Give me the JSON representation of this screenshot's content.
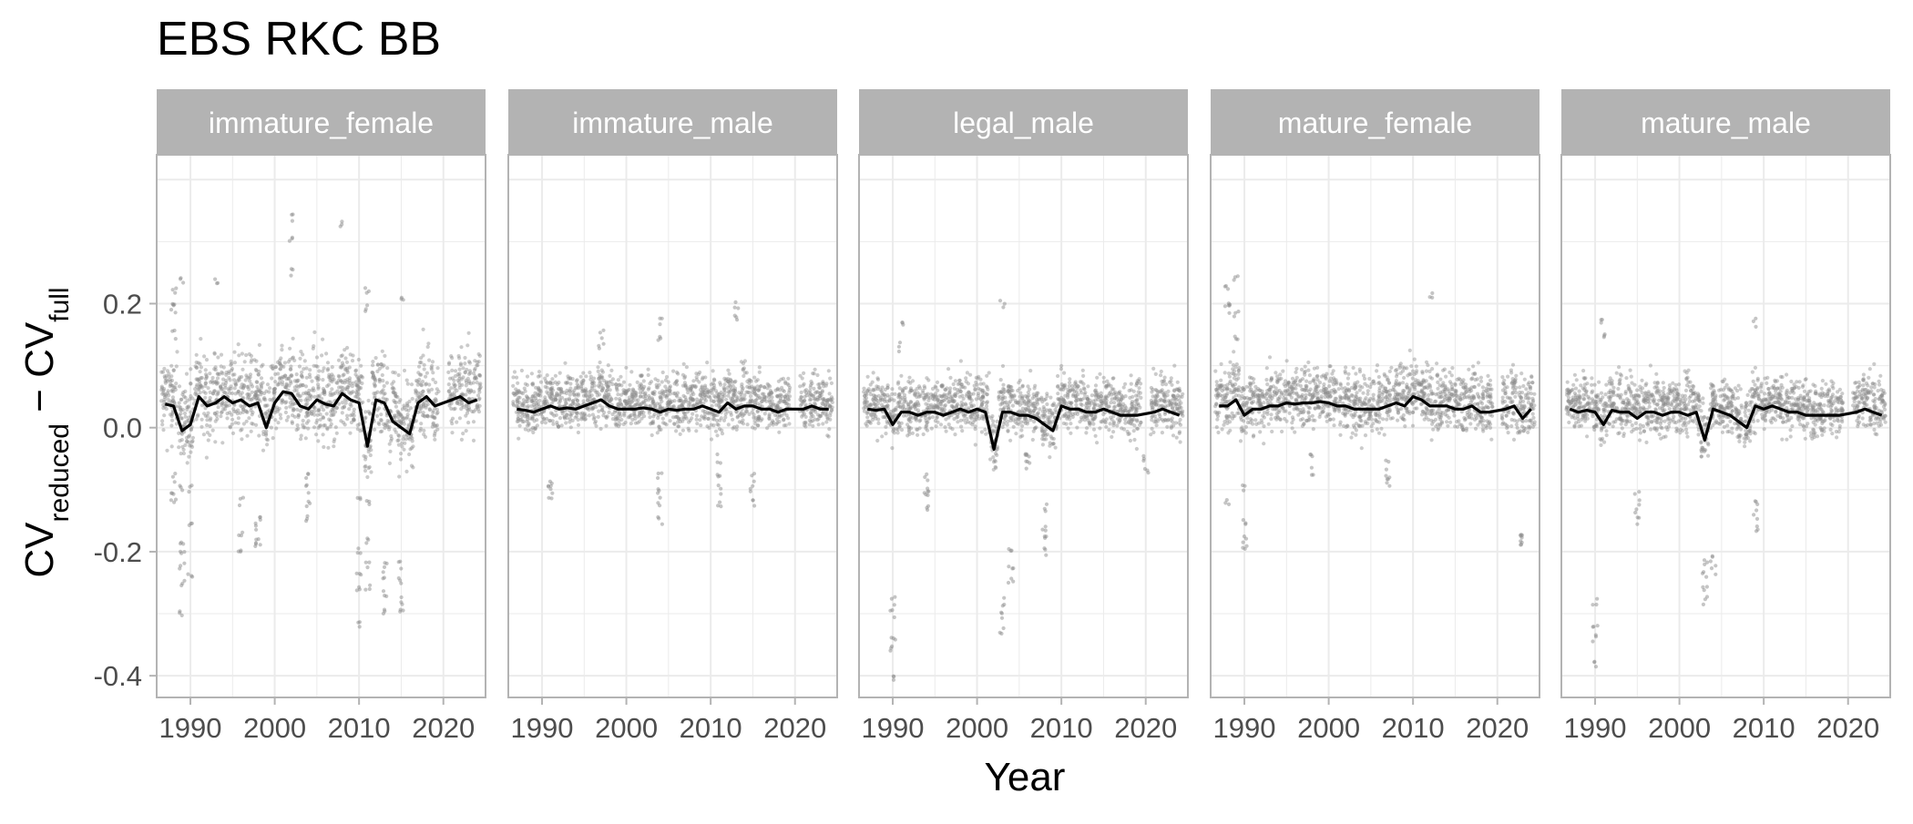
{
  "chart_data": {
    "type": "scatter",
    "title": "EBS RKC BB",
    "xlabel": "Year",
    "ylabel": {
      "base": "CV",
      "sub1": "reduced",
      "minus": " − ",
      "sub2": "full"
    },
    "xlim": [
      1986,
      2025
    ],
    "ylim": [
      -0.435,
      0.44
    ],
    "x_ticks": [
      1990,
      2000,
      2010,
      2020
    ],
    "x_tick_labels": [
      "1990",
      "2000",
      "2010",
      "2020"
    ],
    "y_ticks": [
      0.2,
      0.0,
      -0.2,
      -0.4
    ],
    "y_tick_labels": [
      "0.2",
      "0.0",
      "-0.2",
      "-0.4"
    ],
    "grid": true,
    "legend": "none",
    "colors": {
      "points": "#8c8c8c",
      "line": "#000000",
      "strip": "#b3b3b3",
      "strip_text": "#ffffff",
      "panel_border": "#b3b3b3",
      "grid": "#ebebeb",
      "axis_text": "#4d4d4d"
    },
    "years": [
      1987,
      1988,
      1989,
      1990,
      1991,
      1992,
      1993,
      1994,
      1995,
      1996,
      1997,
      1998,
      1999,
      2000,
      2001,
      2002,
      2003,
      2004,
      2005,
      2006,
      2007,
      2008,
      2009,
      2010,
      2011,
      2012,
      2013,
      2014,
      2015,
      2016,
      2017,
      2018,
      2019,
      2021,
      2022,
      2023,
      2024
    ],
    "panels": [
      {
        "label": "immature_female",
        "mean_line": [
          0.038,
          0.035,
          -0.005,
          0.005,
          0.05,
          0.035,
          0.04,
          0.05,
          0.04,
          0.045,
          0.035,
          0.04,
          0.0,
          0.04,
          0.058,
          0.055,
          0.035,
          0.03,
          0.045,
          0.038,
          0.035,
          0.055,
          0.045,
          0.04,
          -0.03,
          0.045,
          0.04,
          0.01,
          0.0,
          -0.01,
          0.04,
          0.05,
          0.035,
          0.045,
          0.05,
          0.04,
          0.045
        ],
        "spread": 0.06,
        "outliers": [
          {
            "year": 1988,
            "values": [
              0.22,
              0.2,
              0.19,
              0.15,
              -0.08,
              -0.1,
              -0.12
            ]
          },
          {
            "year": 1989,
            "values": [
              0.24,
              -0.2,
              -0.22,
              -0.25,
              -0.3,
              -0.18,
              -0.1
            ]
          },
          {
            "year": 1990,
            "values": [
              -0.1,
              -0.15,
              -0.24
            ]
          },
          {
            "year": 1993,
            "values": [
              0.24
            ]
          },
          {
            "year": 1996,
            "values": [
              -0.12,
              -0.17,
              -0.2
            ]
          },
          {
            "year": 1998,
            "values": [
              -0.15,
              -0.18,
              -0.16,
              -0.19
            ]
          },
          {
            "year": 2002,
            "values": [
              0.34,
              0.3,
              0.25
            ]
          },
          {
            "year": 2004,
            "values": [
              -0.08,
              -0.1,
              -0.12,
              -0.15
            ]
          },
          {
            "year": 2008,
            "values": [
              0.33
            ]
          },
          {
            "year": 2010,
            "values": [
              -0.2,
              -0.24,
              -0.26,
              -0.32,
              -0.12
            ]
          },
          {
            "year": 2011,
            "values": [
              -0.22,
              -0.18,
              -0.12,
              -0.26,
              0.22,
              0.19
            ]
          },
          {
            "year": 2013,
            "values": [
              -0.22,
              -0.27,
              -0.3,
              -0.24
            ]
          },
          {
            "year": 2015,
            "values": [
              -0.25,
              -0.28,
              -0.3,
              -0.22,
              0.21
            ]
          }
        ]
      },
      {
        "label": "immature_male",
        "mean_line": [
          0.03,
          0.028,
          0.025,
          0.03,
          0.035,
          0.03,
          0.032,
          0.03,
          0.035,
          0.04,
          0.045,
          0.035,
          0.03,
          0.03,
          0.03,
          0.032,
          0.03,
          0.025,
          0.03,
          0.028,
          0.03,
          0.03,
          0.035,
          0.03,
          0.025,
          0.04,
          0.03,
          0.035,
          0.035,
          0.03,
          0.03,
          0.025,
          0.03,
          0.03,
          0.035,
          0.03,
          0.03
        ],
        "spread": 0.04,
        "outliers": [
          {
            "year": 1991,
            "values": [
              -0.09,
              -0.1,
              -0.11
            ]
          },
          {
            "year": 1997,
            "values": [
              0.15,
              0.13
            ]
          },
          {
            "year": 2004,
            "values": [
              -0.08,
              -0.1,
              -0.12,
              -0.15,
              0.17,
              0.14
            ]
          },
          {
            "year": 2011,
            "values": [
              -0.05,
              -0.08,
              -0.1,
              -0.12
            ]
          },
          {
            "year": 2013,
            "values": [
              0.2,
              0.18
            ]
          },
          {
            "year": 2015,
            "values": [
              -0.1,
              -0.12,
              -0.08
            ]
          }
        ]
      },
      {
        "label": "legal_male",
        "mean_line": [
          0.03,
          0.028,
          0.03,
          0.005,
          0.025,
          0.025,
          0.02,
          0.025,
          0.025,
          0.02,
          0.025,
          0.03,
          0.025,
          0.03,
          0.025,
          -0.035,
          0.025,
          0.025,
          0.02,
          0.02,
          0.015,
          0.005,
          -0.005,
          0.035,
          0.03,
          0.03,
          0.025,
          0.025,
          0.03,
          0.025,
          0.02,
          0.02,
          0.02,
          0.025,
          0.03,
          0.025,
          0.02
        ],
        "spread": 0.04,
        "outliers": [
          {
            "year": 1990,
            "values": [
              -0.3,
              -0.34,
              -0.36,
              -0.4,
              -0.28
            ]
          },
          {
            "year": 1991,
            "values": [
              0.17,
              0.13
            ]
          },
          {
            "year": 1994,
            "values": [
              -0.08,
              -0.1,
              -0.11,
              -0.13
            ]
          },
          {
            "year": 2003,
            "values": [
              -0.28,
              -0.3,
              -0.33,
              0.2
            ]
          },
          {
            "year": 2004,
            "values": [
              -0.2,
              -0.22,
              -0.25
            ]
          },
          {
            "year": 2006,
            "values": [
              -0.04,
              -0.05,
              -0.06
            ]
          },
          {
            "year": 2008,
            "values": [
              -0.13,
              -0.16,
              -0.18,
              -0.2
            ]
          },
          {
            "year": 2020,
            "values": [
              -0.05,
              -0.07
            ]
          }
        ]
      },
      {
        "label": "mature_female",
        "mean_line": [
          0.035,
          0.035,
          0.045,
          0.02,
          0.03,
          0.03,
          0.035,
          0.035,
          0.04,
          0.038,
          0.04,
          0.04,
          0.042,
          0.04,
          0.035,
          0.035,
          0.03,
          0.03,
          0.03,
          0.03,
          0.035,
          0.04,
          0.035,
          0.05,
          0.045,
          0.035,
          0.035,
          0.035,
          0.03,
          0.03,
          0.035,
          0.025,
          0.025,
          0.03,
          0.035,
          0.015,
          0.03
        ],
        "spread": 0.045,
        "outliers": [
          {
            "year": 1988,
            "values": [
              0.23,
              0.2,
              0.19,
              -0.12
            ]
          },
          {
            "year": 1989,
            "values": [
              0.18,
              0.15,
              0.24
            ]
          },
          {
            "year": 1990,
            "values": [
              -0.15,
              -0.18,
              -0.19,
              -0.1
            ]
          },
          {
            "year": 1998,
            "values": [
              -0.05,
              -0.07
            ]
          },
          {
            "year": 2007,
            "values": [
              -0.06,
              -0.08,
              -0.09
            ]
          },
          {
            "year": 2012,
            "values": [
              0.21
            ]
          },
          {
            "year": 2023,
            "values": [
              -0.17,
              -0.18,
              -0.19
            ]
          }
        ]
      },
      {
        "label": "mature_male",
        "mean_line": [
          0.03,
          0.025,
          0.028,
          0.025,
          0.005,
          0.028,
          0.025,
          0.025,
          0.015,
          0.025,
          0.025,
          0.02,
          0.025,
          0.025,
          0.02,
          0.025,
          -0.02,
          0.03,
          0.025,
          0.02,
          0.01,
          0.0,
          0.035,
          0.03,
          0.035,
          0.03,
          0.025,
          0.025,
          0.02,
          0.02,
          0.02,
          0.02,
          0.02,
          0.025,
          0.03,
          0.025,
          0.02
        ],
        "spread": 0.04,
        "outliers": [
          {
            "year": 1990,
            "values": [
              -0.32,
              -0.34,
              -0.38,
              -0.28
            ]
          },
          {
            "year": 1991,
            "values": [
              0.17,
              0.15
            ]
          },
          {
            "year": 1995,
            "values": [
              -0.11,
              -0.13,
              -0.15
            ]
          },
          {
            "year": 2003,
            "values": [
              -0.24,
              -0.26,
              -0.28,
              -0.22
            ]
          },
          {
            "year": 2004,
            "values": [
              -0.21,
              -0.23
            ]
          },
          {
            "year": 2009,
            "values": [
              -0.12,
              -0.14,
              -0.16,
              0.17
            ]
          }
        ]
      }
    ]
  }
}
